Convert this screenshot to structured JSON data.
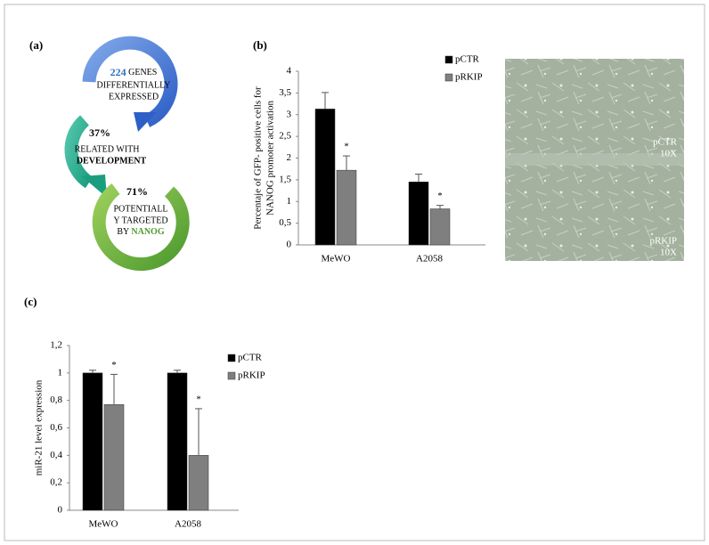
{
  "panel_labels": [
    "(a)",
    "(b)",
    "(c)"
  ],
  "diagram": {
    "steps": [
      {
        "number": "224",
        "lines": [
          "GENES",
          "DIFFERENTIALLY",
          "EXPRESSED"
        ]
      },
      {
        "number": "37%",
        "lines": [
          "RELATED WITH"
        ],
        "keyword": "DEVELOPMENT"
      },
      {
        "number": "71%",
        "lines": [
          "POTENTIALL",
          "Y TARGETED",
          "BY"
        ],
        "keyword": "NANOG"
      }
    ]
  },
  "photo": {
    "labels": [
      [
        "pCTR",
        "10X"
      ],
      [
        "pRKIP",
        "10X"
      ]
    ]
  },
  "chart_data": [
    {
      "type": "bar",
      "ylabel": [
        "Percentaje of GFP- positive cells for",
        "NANOG promoter activation"
      ],
      "categories": [
        "MeWO",
        "A2058"
      ],
      "series": [
        {
          "name": "pCTR",
          "color": "#000000",
          "values": [
            3.13,
            1.45
          ],
          "errors": [
            0.38,
            0.18
          ]
        },
        {
          "name": "pRKIP",
          "color": "#7f7f7f",
          "values": [
            1.72,
            0.83
          ],
          "errors": [
            0.33,
            0.08
          ],
          "significance": [
            "*",
            "*"
          ]
        }
      ],
      "ylim": [
        0,
        4
      ],
      "yticks": [
        0,
        {
          "value": 0.5,
          "label": "0,5"
        },
        1,
        {
          "value": 1.5,
          "label": "1,5"
        },
        2,
        {
          "value": 2.5,
          "label": "2,5"
        },
        3,
        {
          "value": 3.5,
          "label": "3,5"
        },
        4
      ],
      "legend": "upper right"
    },
    {
      "type": "bar",
      "ylabel": [
        "miR-21 level expression"
      ],
      "categories": [
        "MeWO",
        "A2058"
      ],
      "series": [
        {
          "name": "pCTR",
          "color": "#000000",
          "values": [
            1.0,
            1.0
          ],
          "errors": [
            0.02,
            0.02
          ]
        },
        {
          "name": "pRKIP",
          "color": "#7f7f7f",
          "values": [
            0.77,
            0.4
          ],
          "errors": [
            0.22,
            0.34
          ],
          "significance": [
            "*",
            "*"
          ]
        }
      ],
      "ylim": [
        0,
        1.2
      ],
      "yticks": [
        0,
        {
          "value": 0.2,
          "label": "0,2"
        },
        {
          "value": 0.4,
          "label": "0,4"
        },
        {
          "value": 0.6,
          "label": "0,6"
        },
        {
          "value": 0.8,
          "label": "0,8"
        },
        1,
        {
          "value": 1.2,
          "label": "1,2"
        }
      ],
      "legend": "right"
    }
  ]
}
